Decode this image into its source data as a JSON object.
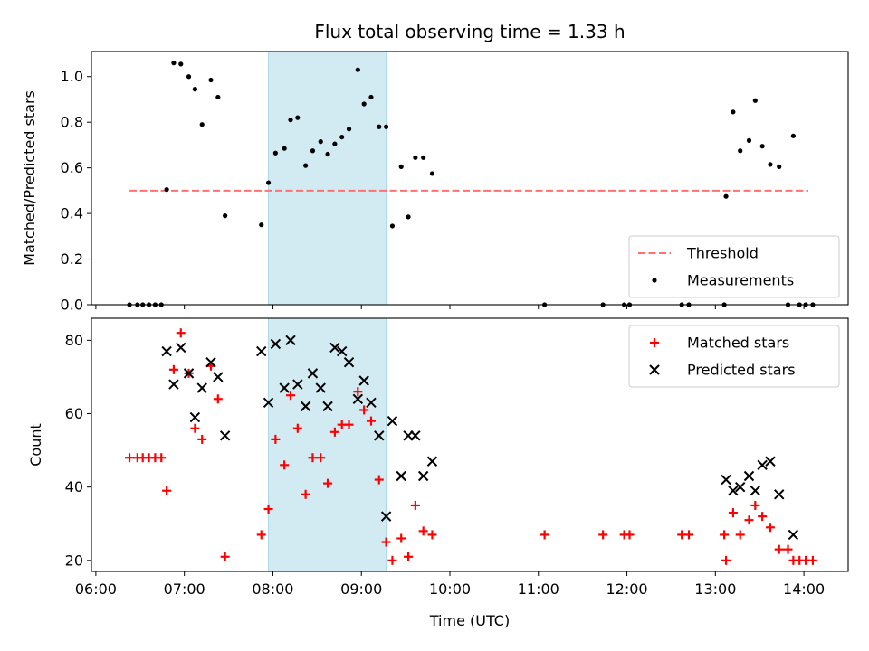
{
  "chart_data": {
    "title": "Flux total observing time = 1.33 h",
    "x_unit": "hours (UTC)",
    "xlabel": "Time (UTC)",
    "xlim": [
      5.95,
      14.5
    ],
    "x_ticks": [
      6,
      7,
      8,
      9,
      10,
      11,
      12,
      13,
      14
    ],
    "x_tick_labels": [
      "06:00",
      "07:00",
      "08:00",
      "09:00",
      "10:00",
      "11:00",
      "12:00",
      "13:00",
      "14:00"
    ],
    "observing_window": {
      "start": 7.95,
      "end": 9.28,
      "color": "#add8e6"
    },
    "panels": [
      {
        "type": "scatter",
        "ylabel": "Matched/Predicted stars",
        "ylim": [
          0,
          1.11
        ],
        "y_ticks": [
          0.0,
          0.2,
          0.4,
          0.6,
          0.8,
          1.0
        ],
        "y_tick_labels": [
          "0.0",
          "0.2",
          "0.4",
          "0.6",
          "0.8",
          "1.0"
        ],
        "legend_position": "bottom-right",
        "threshold": {
          "name": "Threshold",
          "value": 0.5,
          "x_range": [
            6.38,
            14.05
          ],
          "color": "#ff7070"
        },
        "series": [
          {
            "name": "Measurements",
            "marker": "dot",
            "color": "#000000",
            "x": [
              6.38,
              6.47,
              6.53,
              6.6,
              6.67,
              6.74,
              6.8,
              6.88,
              6.96,
              7.05,
              7.12,
              7.2,
              7.3,
              7.38,
              7.46,
              7.87,
              7.95,
              8.03,
              8.13,
              8.2,
              8.28,
              8.37,
              8.45,
              8.54,
              8.62,
              8.7,
              8.78,
              8.86,
              8.96,
              9.03,
              9.11,
              9.2,
              9.28,
              9.35,
              9.45,
              9.53,
              9.61,
              9.7,
              9.8,
              11.07,
              11.73,
              11.97,
              12.03,
              12.62,
              12.7,
              13.1,
              13.12,
              13.2,
              13.28,
              13.38,
              13.45,
              13.53,
              13.62,
              13.72,
              13.82,
              13.88,
              13.95,
              14.02,
              14.1
            ],
            "y": [
              0,
              0,
              0,
              0,
              0,
              0,
              0.505,
              1.06,
              1.055,
              1.0,
              0.945,
              0.79,
              0.985,
              0.91,
              0.39,
              0.35,
              0.535,
              0.665,
              0.685,
              0.81,
              0.82,
              0.61,
              0.675,
              0.715,
              0.66,
              0.705,
              0.735,
              0.77,
              1.03,
              0.88,
              0.91,
              0.78,
              0.78,
              0.345,
              0.605,
              0.385,
              0.645,
              0.645,
              0.575,
              0,
              0,
              0,
              0,
              0,
              0,
              0,
              0.475,
              0.845,
              0.675,
              0.72,
              0.895,
              0.695,
              0.615,
              0.605,
              0,
              0.74,
              0,
              0,
              0
            ]
          }
        ]
      },
      {
        "type": "scatter",
        "ylabel": "Count",
        "ylim": [
          17,
          86
        ],
        "y_ticks": [
          20,
          40,
          60,
          80
        ],
        "y_tick_labels": [
          "20",
          "40",
          "60",
          "80"
        ],
        "legend_position": "top-right",
        "series": [
          {
            "name": "Matched stars",
            "marker": "plus",
            "color": "#ff0000",
            "x": [
              6.38,
              6.47,
              6.53,
              6.6,
              6.67,
              6.74,
              6.8,
              6.88,
              6.96,
              7.05,
              7.12,
              7.2,
              7.3,
              7.38,
              7.46,
              7.87,
              7.95,
              8.03,
              8.13,
              8.2,
              8.28,
              8.37,
              8.45,
              8.54,
              8.62,
              8.7,
              8.78,
              8.86,
              8.96,
              9.03,
              9.11,
              9.2,
              9.28,
              9.35,
              9.45,
              9.53,
              9.61,
              9.7,
              9.8,
              11.07,
              11.73,
              11.97,
              12.03,
              12.62,
              12.7,
              13.1,
              13.12,
              13.2,
              13.28,
              13.38,
              13.45,
              13.53,
              13.62,
              13.72,
              13.82,
              13.88,
              13.95,
              14.02,
              14.1
            ],
            "y": [
              48,
              48,
              48,
              48,
              48,
              48,
              39,
              72,
              82,
              71,
              56,
              53,
              73,
              64,
              21,
              27,
              34,
              53,
              46,
              65,
              56,
              38,
              48,
              48,
              41,
              55,
              57,
              57,
              66,
              61,
              58,
              42,
              25,
              20,
              26,
              21,
              35,
              28,
              27,
              27,
              27,
              27,
              27,
              27,
              27,
              27,
              20,
              33,
              27,
              31,
              35,
              32,
              29,
              23,
              23,
              20,
              20,
              20,
              20
            ]
          },
          {
            "name": "Predicted stars",
            "marker": "x",
            "color": "#000000",
            "x": [
              6.8,
              6.88,
              6.96,
              7.05,
              7.12,
              7.2,
              7.3,
              7.38,
              7.46,
              7.87,
              7.95,
              8.03,
              8.13,
              8.2,
              8.28,
              8.37,
              8.45,
              8.54,
              8.62,
              8.7,
              8.78,
              8.86,
              8.96,
              9.03,
              9.11,
              9.2,
              9.28,
              9.35,
              9.45,
              9.53,
              9.61,
              9.7,
              9.8,
              13.12,
              13.2,
              13.28,
              13.38,
              13.45,
              13.53,
              13.62,
              13.72,
              13.88
            ],
            "y": [
              77,
              68,
              78,
              71,
              59,
              67,
              74,
              70,
              54,
              77,
              63,
              79,
              67,
              80,
              68,
              62,
              71,
              67,
              62,
              78,
              77,
              74,
              64,
              69,
              63,
              54,
              32,
              58,
              43,
              54,
              54,
              43,
              47,
              42,
              39,
              40,
              43,
              39,
              46,
              47,
              38,
              27
            ]
          }
        ]
      }
    ]
  }
}
